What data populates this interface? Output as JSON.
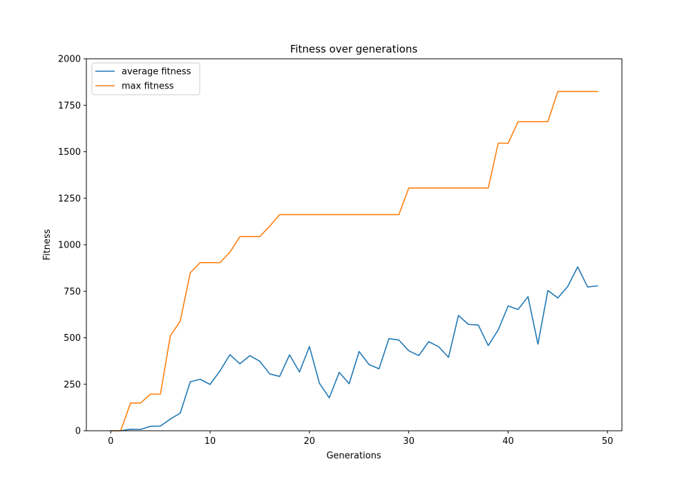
{
  "chart_data": {
    "type": "line",
    "title": "Fitness over generations",
    "xlabel": "Generations",
    "ylabel": "Fitness",
    "xlim": [
      -2.45,
      51.45
    ],
    "ylim": [
      0,
      2000
    ],
    "xticks": [
      0,
      10,
      20,
      30,
      40,
      50
    ],
    "yticks": [
      0,
      250,
      500,
      750,
      1000,
      1250,
      1500,
      1750,
      2000
    ],
    "grid": false,
    "legend_position": "top-left",
    "x": [
      0,
      1,
      2,
      3,
      4,
      5,
      6,
      7,
      8,
      9,
      10,
      11,
      12,
      13,
      14,
      15,
      16,
      17,
      18,
      19,
      20,
      21,
      22,
      23,
      24,
      25,
      26,
      27,
      28,
      29,
      30,
      31,
      32,
      33,
      34,
      35,
      36,
      37,
      38,
      39,
      40,
      41,
      42,
      43,
      44,
      45,
      46,
      47,
      48,
      49
    ],
    "series": [
      {
        "name": "average fitness",
        "color": "#1f77b4",
        "values": [
          0,
          0,
          8,
          7,
          24,
          25,
          63,
          95,
          263,
          277,
          249,
          322,
          409,
          360,
          404,
          374,
          306,
          292,
          408,
          316,
          453,
          256,
          177,
          314,
          253,
          426,
          356,
          333,
          495,
          488,
          430,
          404,
          479,
          452,
          395,
          620,
          572,
          568,
          458,
          542,
          671,
          652,
          721,
          466,
          754,
          714,
          776,
          881,
          773,
          779
        ]
      },
      {
        "name": "max fitness",
        "color": "#ff7f0e",
        "values": [
          0,
          0,
          149,
          149,
          197,
          197,
          510,
          590,
          849,
          904,
          904,
          904,
          960,
          1044,
          1044,
          1044,
          1100,
          1162,
          1162,
          1162,
          1162,
          1162,
          1162,
          1162,
          1162,
          1162,
          1162,
          1162,
          1162,
          1162,
          1305,
          1305,
          1305,
          1305,
          1305,
          1305,
          1305,
          1305,
          1305,
          1546,
          1546,
          1662,
          1662,
          1662,
          1662,
          1824,
          1824,
          1824,
          1824,
          1824
        ]
      }
    ]
  }
}
